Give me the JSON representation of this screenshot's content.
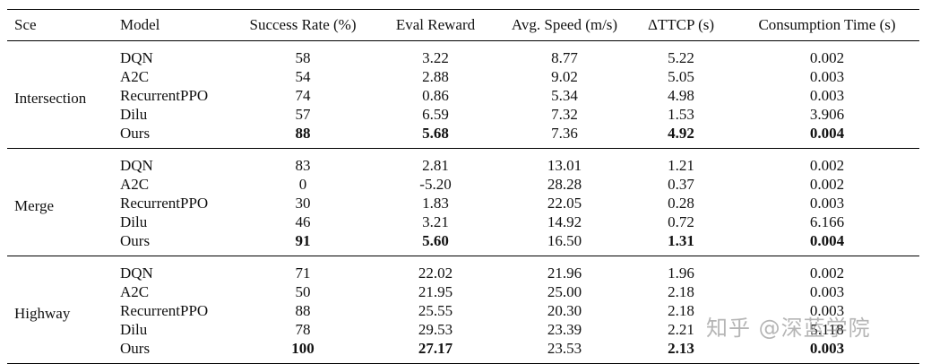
{
  "headers": [
    "Sce",
    "Model",
    "Success Rate (%)",
    "Eval Reward",
    "Avg. Speed (m/s)",
    "ΔTTCP (s)",
    "Consumption Time (s)"
  ],
  "groups": [
    {
      "scenario": "Intersection",
      "rows": [
        {
          "model": "DQN",
          "sr": "58",
          "er": "3.22",
          "sp": "8.77",
          "tt": "5.22",
          "ct": "0.002"
        },
        {
          "model": "A2C",
          "sr": "54",
          "er": "2.88",
          "sp": "9.02",
          "tt": "5.05",
          "ct": "0.003"
        },
        {
          "model": "RecurrentPPO",
          "sr": "74",
          "er": "0.86",
          "sp": "5.34",
          "tt": "4.98",
          "ct": "0.003"
        },
        {
          "model": "Dilu",
          "sr": "57",
          "er": "6.59",
          "sp": "7.32",
          "tt": "1.53",
          "ct": "3.906"
        },
        {
          "model": "Ours",
          "sr": "88",
          "er": "5.68",
          "sp": "7.36",
          "tt": "4.92",
          "ct": "0.004"
        }
      ]
    },
    {
      "scenario": "Merge",
      "rows": [
        {
          "model": "DQN",
          "sr": "83",
          "er": "2.81",
          "sp": "13.01",
          "tt": "1.21",
          "ct": "0.002"
        },
        {
          "model": "A2C",
          "sr": "0",
          "er": "-5.20",
          "sp": "28.28",
          "tt": "0.37",
          "ct": "0.002"
        },
        {
          "model": "RecurrentPPO",
          "sr": "30",
          "er": "1.83",
          "sp": "22.05",
          "tt": "0.28",
          "ct": "0.003"
        },
        {
          "model": "Dilu",
          "sr": "46",
          "er": "3.21",
          "sp": "14.92",
          "tt": "0.72",
          "ct": "6.166"
        },
        {
          "model": "Ours",
          "sr": "91",
          "er": "5.60",
          "sp": "16.50",
          "tt": "1.31",
          "ct": "0.004"
        }
      ]
    },
    {
      "scenario": "Highway",
      "rows": [
        {
          "model": "DQN",
          "sr": "71",
          "er": "22.02",
          "sp": "21.96",
          "tt": "1.96",
          "ct": "0.002"
        },
        {
          "model": "A2C",
          "sr": "50",
          "er": "21.95",
          "sp": "25.00",
          "tt": "2.18",
          "ct": "0.003"
        },
        {
          "model": "RecurrentPPO",
          "sr": "88",
          "er": "25.55",
          "sp": "20.30",
          "tt": "2.18",
          "ct": "0.003"
        },
        {
          "model": "Dilu",
          "sr": "78",
          "er": "29.53",
          "sp": "23.39",
          "tt": "2.21",
          "ct": "5.118"
        },
        {
          "model": "Ours",
          "sr": "100",
          "er": "27.17",
          "sp": "23.53",
          "tt": "2.13",
          "ct": "0.003"
        }
      ]
    }
  ],
  "watermark": "知乎 @深蓝学院"
}
